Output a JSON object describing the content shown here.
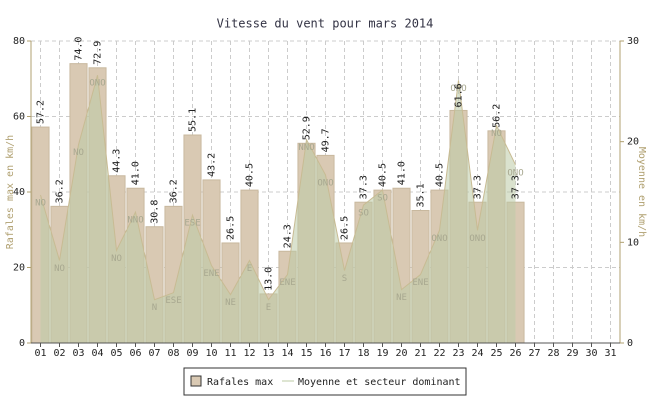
{
  "chart_data": {
    "type": "bar_area",
    "title": "Vitesse du vent pour mars 2014",
    "ylabel": "Rafales max en km/h",
    "y2label": "Moyenne en km/h",
    "categories": [
      "01",
      "02",
      "03",
      "04",
      "05",
      "06",
      "07",
      "08",
      "09",
      "10",
      "11",
      "12",
      "13",
      "14",
      "15",
      "16",
      "17",
      "18",
      "19",
      "20",
      "21",
      "22",
      "23",
      "24",
      "25",
      "26",
      "27",
      "28",
      "29",
      "30",
      "31"
    ],
    "series": [
      {
        "name": "Rafales max",
        "color": "#d9c9b3",
        "values": [
          57.2,
          36.2,
          74.0,
          72.9,
          44.3,
          41.0,
          30.8,
          36.2,
          55.1,
          43.2,
          26.5,
          40.5,
          13.0,
          24.3,
          52.9,
          49.7,
          26.5,
          37.3,
          40.5,
          41.0,
          35.1,
          40.5,
          61.6,
          37.3,
          56.2,
          37.3,
          null,
          null,
          null,
          null,
          null
        ],
        "value_labels": [
          "57.2",
          "36.2",
          "74.0",
          "72.9",
          "44.3",
          "41.0",
          "30.8",
          "36.2",
          "55.1",
          "43.2",
          "26.5",
          "40.5",
          "13.0",
          "24.3",
          "52.9",
          "49.7",
          "26.5",
          "37.3",
          "40.5",
          "41.0",
          "35.1",
          "40.5",
          "61.6",
          "37.3",
          "56.2",
          "37.3",
          null,
          null,
          null,
          null,
          null
        ]
      },
      {
        "name": "Moyenne et secteur dominant",
        "color": "#bccba6",
        "axis": "y2",
        "values": [
          14.7,
          8.2,
          19.7,
          26.6,
          9.2,
          13.0,
          4.3,
          5.0,
          12.7,
          7.7,
          4.8,
          8.2,
          4.3,
          6.8,
          20.2,
          16.7,
          7.2,
          13.7,
          15.2,
          5.3,
          6.8,
          11.2,
          26.1,
          11.2,
          21.6,
          17.7,
          null,
          null,
          null,
          null,
          null
        ],
        "sector_labels": [
          "NO",
          "NO",
          "NO",
          "ONO",
          "NO",
          "NNO",
          "N",
          "ESE",
          "ESE",
          "ENE",
          "NE",
          "E",
          "E",
          "ENE",
          "NNO",
          "ONO",
          "S",
          "SO",
          "SO",
          "NE",
          "ENE",
          "ONO",
          "ONO",
          "ONO",
          "NO",
          "ONO",
          null,
          null,
          null,
          null,
          null
        ]
      }
    ],
    "ylim": [
      0,
      80
    ],
    "yticks": [
      0,
      20,
      40,
      60,
      80
    ],
    "y2lim": [
      0,
      30
    ],
    "y2ticks": [
      0,
      10,
      20,
      30
    ],
    "grid": true
  }
}
